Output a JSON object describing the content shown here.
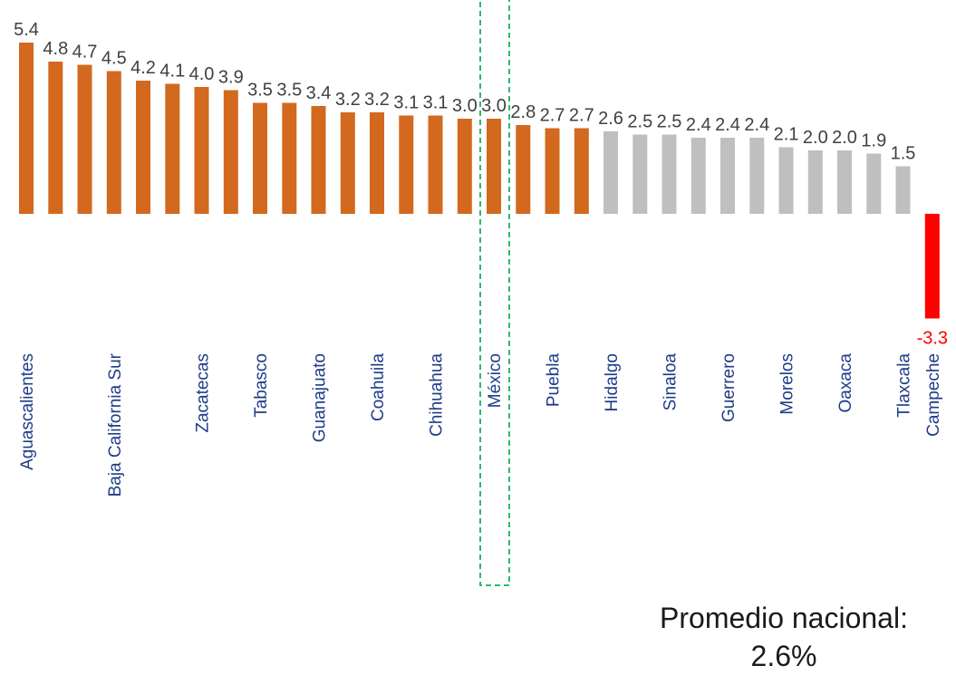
{
  "chart_data": {
    "type": "bar",
    "title": "",
    "xlabel": "",
    "ylabel": "",
    "ylim": [
      -3.3,
      5.4
    ],
    "bars": [
      {
        "state": "Aguascalientes",
        "value": 5.4,
        "value_label": "5.4"
      },
      {
        "state": "",
        "value": 4.8,
        "value_label": "4.8"
      },
      {
        "state": "",
        "value": 4.7,
        "value_label": "4.7"
      },
      {
        "state": "Baja California Sur",
        "value": 4.5,
        "value_label": "4.5"
      },
      {
        "state": "",
        "value": 4.2,
        "value_label": "4.2"
      },
      {
        "state": "",
        "value": 4.1,
        "value_label": "4.1"
      },
      {
        "state": "Zacatecas",
        "value": 4.0,
        "value_label": "4.0"
      },
      {
        "state": "",
        "value": 3.9,
        "value_label": "3.9"
      },
      {
        "state": "Tabasco",
        "value": 3.5,
        "value_label": "3.5"
      },
      {
        "state": "",
        "value": 3.5,
        "value_label": "3.5"
      },
      {
        "state": "Guanajuato",
        "value": 3.4,
        "value_label": "3.4"
      },
      {
        "state": "",
        "value": 3.2,
        "value_label": "3.2"
      },
      {
        "state": "Coahuila",
        "value": 3.2,
        "value_label": "3.2"
      },
      {
        "state": "",
        "value": 3.1,
        "value_label": "3.1"
      },
      {
        "state": "Chihuahua",
        "value": 3.1,
        "value_label": "3.1"
      },
      {
        "state": "",
        "value": 3.0,
        "value_label": "3.0"
      },
      {
        "state": "México",
        "value": 3.0,
        "value_label": "3.0"
      },
      {
        "state": "",
        "value": 2.8,
        "value_label": "2.8"
      },
      {
        "state": "Puebla",
        "value": 2.7,
        "value_label": "2.7"
      },
      {
        "state": "",
        "value": 2.7,
        "value_label": "2.7"
      },
      {
        "state": "Hidalgo",
        "value": 2.6,
        "value_label": "2.6"
      },
      {
        "state": "",
        "value": 2.5,
        "value_label": "2.5"
      },
      {
        "state": "Sinaloa",
        "value": 2.5,
        "value_label": "2.5"
      },
      {
        "state": "",
        "value": 2.4,
        "value_label": "2.4"
      },
      {
        "state": "Guerrero",
        "value": 2.4,
        "value_label": "2.4"
      },
      {
        "state": "",
        "value": 2.4,
        "value_label": "2.4"
      },
      {
        "state": "Morelos",
        "value": 2.1,
        "value_label": "2.1"
      },
      {
        "state": "",
        "value": 2.0,
        "value_label": "2.0"
      },
      {
        "state": "Oaxaca",
        "value": 2.0,
        "value_label": "2.0"
      },
      {
        "state": "",
        "value": 1.9,
        "value_label": "1.9"
      },
      {
        "state": "Tlaxcala",
        "value": 1.5,
        "value_label": "1.5"
      },
      {
        "state": "Campeche",
        "value": -3.3,
        "value_label": "-3.3"
      }
    ],
    "highlight_box_label": "México",
    "colors": {
      "above_average": "#d2691e",
      "below_average": "#bfbfbf",
      "negative": "#ff0000",
      "value_label": "#404040",
      "value_label_negative": "#ff0000",
      "category_label": "#1f3c88",
      "highlight_box": "#2eb872"
    }
  },
  "footnote": {
    "line1": "Promedio nacional:",
    "line2": "2.6%"
  }
}
